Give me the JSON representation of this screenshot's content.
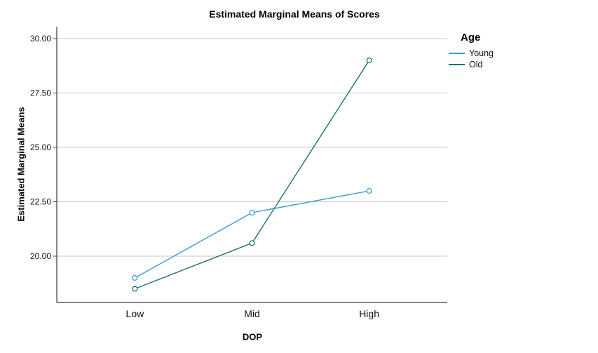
{
  "title": "Estimated Marginal Means of Scores",
  "legend": {
    "title": "Age",
    "entries": [
      {
        "label": "Young",
        "color": "#3C9BD7"
      },
      {
        "label": "Old",
        "color": "#20706D"
      }
    ]
  },
  "chart_data": {
    "type": "line",
    "title": "Estimated Marginal Means of Scores",
    "xlabel": "DOP",
    "ylabel": "Estimated Marginal Means",
    "categories": [
      "Low",
      "Mid",
      "High"
    ],
    "series": [
      {
        "name": "Young",
        "color": "#3C9BD7",
        "values": [
          19.0,
          22.0,
          23.0
        ]
      },
      {
        "name": "Old",
        "color": "#20706D",
        "values": [
          18.5,
          20.6,
          29.0
        ]
      }
    ],
    "yticks": [
      20.0,
      22.5,
      25.0,
      27.5,
      30.0
    ],
    "ytick_labels": [
      "20.00",
      "22.50",
      "25.00",
      "27.50",
      "30.00"
    ],
    "ylim": [
      17.87,
      30.55
    ],
    "grid": true,
    "legend_position": "top-right",
    "marker": "open-circle"
  },
  "colors": {
    "grid": "#c6c6c6",
    "axis": "#383838",
    "tick_text": "#111111"
  }
}
